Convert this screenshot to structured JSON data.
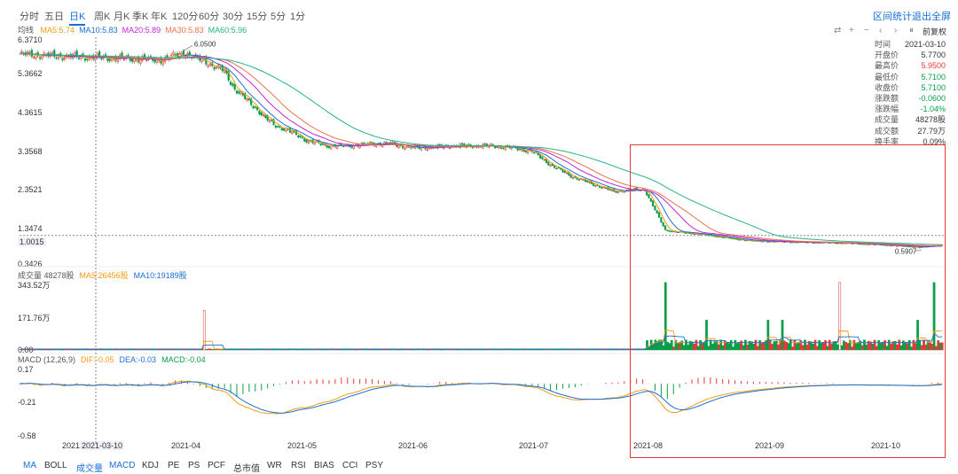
{
  "tabs": {
    "periods": [
      {
        "label": "分时",
        "active": false
      },
      {
        "label": "五日",
        "active": false
      },
      {
        "label": "日K",
        "active": true
      },
      {
        "label": "周K",
        "active": false
      },
      {
        "label": "月K",
        "active": false
      },
      {
        "label": "季K",
        "active": false
      },
      {
        "label": "年K",
        "active": false
      },
      {
        "label": "120分",
        "active": false
      },
      {
        "label": "60分",
        "active": false
      },
      {
        "label": "30分",
        "active": false
      },
      {
        "label": "15分",
        "active": false
      },
      {
        "label": "5分",
        "active": false
      },
      {
        "label": "1分",
        "active": false
      }
    ],
    "right_links": [
      "区间统计",
      "退出全屏"
    ]
  },
  "ma_legend": {
    "title": "均线",
    "items": [
      {
        "label": "MA5:5.74",
        "color": "#f39c12"
      },
      {
        "label": "MA10:5.83",
        "color": "#1a6fd6"
      },
      {
        "label": "MA20:5.89",
        "color": "#c026d3"
      },
      {
        "label": "MA30:5.83",
        "color": "#e8734a"
      },
      {
        "label": "MA60:5.96",
        "color": "#26b38a"
      }
    ]
  },
  "toolbar": {
    "icons": [
      "⇄",
      "+",
      "−",
      "‹",
      "›",
      "⏸"
    ],
    "adjust_label": "前复权"
  },
  "info_panel": [
    {
      "k": "时间",
      "v": "2021-03-10",
      "color": "#333"
    },
    {
      "k": "开盘价",
      "v": "5.7700",
      "color": "#333"
    },
    {
      "k": "最高价",
      "v": "5.9500",
      "color": "#e53935"
    },
    {
      "k": "最低价",
      "v": "5.7100",
      "color": "#0a9d48"
    },
    {
      "k": "收盘价",
      "v": "5.7100",
      "color": "#0a9d48"
    },
    {
      "k": "涨跌额",
      "v": "-0.0600",
      "color": "#0a9d48"
    },
    {
      "k": "涨跌幅",
      "v": "-1.04%",
      "color": "#0a9d48"
    },
    {
      "k": "成交量",
      "v": "48278股",
      "color": "#333"
    },
    {
      "k": "成交额",
      "v": "27.79万",
      "color": "#333"
    },
    {
      "k": "换手率",
      "v": "0.09%",
      "color": "#333"
    }
  ],
  "price_axis": {
    "labels": [
      "6.3710",
      "5.3662",
      "4.3615",
      "3.3568",
      "2.3521",
      "1.3474",
      "0.3426"
    ],
    "crosshair_label": "1.0015"
  },
  "price_marks": {
    "high_label": "6.0500",
    "low_label": "0.5907"
  },
  "volume_panel": {
    "legend": [
      {
        "label": "成交量 48278股",
        "color": "#555"
      },
      {
        "label": "MA5:26456股",
        "color": "#f39c12"
      },
      {
        "label": "MA10:19189股",
        "color": "#1a6fd6"
      }
    ],
    "axis_labels": [
      "343.52万",
      "171.76万",
      "0.00"
    ]
  },
  "macd_panel": {
    "legend": [
      {
        "label": "MACD (12,26,9)",
        "color": "#555"
      },
      {
        "label": "DIF:-0.05",
        "color": "#f39c12"
      },
      {
        "label": "DEA:-0.03",
        "color": "#1a6fd6"
      },
      {
        "label": "MACD:-0.04",
        "color": "#0a9d48"
      }
    ],
    "axis_labels": [
      "0.17",
      "-0.21",
      "-0.58"
    ]
  },
  "x_axis": {
    "labels": [
      "2021",
      "2021-03-10",
      "2021-04",
      "2021-05",
      "2021-06",
      "2021-07",
      "2021-08",
      "2021-09",
      "2021-10"
    ]
  },
  "indicator_tabs": [
    {
      "label": "MA",
      "active": true
    },
    {
      "label": "BOLL",
      "active": false
    },
    {
      "label": "成交量",
      "active": true
    },
    {
      "label": "MACD",
      "active": true
    },
    {
      "label": "KDJ",
      "active": false
    },
    {
      "label": "PE",
      "active": false
    },
    {
      "label": "PS",
      "active": false
    },
    {
      "label": "PCF",
      "active": false
    },
    {
      "label": "总市值",
      "active": false
    },
    {
      "label": "WR",
      "active": false
    },
    {
      "label": "RSI",
      "active": false
    },
    {
      "label": "BIAS",
      "active": false
    },
    {
      "label": "CCI",
      "active": false
    },
    {
      "label": "PSY",
      "active": false
    }
  ],
  "chart_data": {
    "type": "candlestick",
    "price_range": [
      0.3426,
      6.371
    ],
    "volume_range": [
      0,
      3435200
    ],
    "macd_range": [
      -0.58,
      0.17
    ],
    "up_color": "#e53935",
    "down_color": "#0a9d48",
    "ma_colors": {
      "MA5": "#f39c12",
      "MA10": "#1a6fd6",
      "MA20": "#c026d3",
      "MA30": "#e8734a",
      "MA60": "#26b38a"
    },
    "close_path": [
      [
        0,
        5.95
      ],
      [
        10,
        5.93
      ],
      [
        20,
        5.9
      ],
      [
        30,
        5.88
      ],
      [
        40,
        5.86
      ],
      [
        50,
        5.84
      ],
      [
        60,
        5.82
      ],
      [
        70,
        5.8
      ],
      [
        75,
        5.9
      ],
      [
        80,
        6.0
      ],
      [
        85,
        5.85
      ],
      [
        90,
        5.8
      ],
      [
        95,
        5.6
      ],
      [
        100,
        5.5
      ],
      [
        105,
        5.0
      ],
      [
        110,
        4.75
      ],
      [
        115,
        4.5
      ],
      [
        120,
        4.2
      ],
      [
        125,
        4.0
      ],
      [
        130,
        3.9
      ],
      [
        135,
        3.75
      ],
      [
        140,
        3.6
      ],
      [
        150,
        3.45
      ],
      [
        160,
        3.45
      ],
      [
        170,
        3.5
      ],
      [
        180,
        3.52
      ],
      [
        190,
        3.4
      ],
      [
        200,
        3.4
      ],
      [
        210,
        3.45
      ],
      [
        220,
        3.45
      ],
      [
        230,
        3.45
      ],
      [
        240,
        3.4
      ],
      [
        250,
        3.3
      ],
      [
        255,
        3.1
      ],
      [
        260,
        2.9
      ],
      [
        265,
        2.75
      ],
      [
        270,
        2.6
      ],
      [
        280,
        2.4
      ],
      [
        290,
        2.2
      ],
      [
        300,
        2.25
      ],
      [
        305,
        2.25
      ],
      [
        310,
        1.7
      ],
      [
        315,
        1.15
      ],
      [
        320,
        1.1
      ],
      [
        330,
        1.05
      ],
      [
        340,
        0.98
      ],
      [
        350,
        0.9
      ],
      [
        360,
        0.85
      ],
      [
        380,
        0.82
      ],
      [
        400,
        0.8
      ],
      [
        420,
        0.75
      ],
      [
        440,
        0.68
      ],
      [
        445,
        0.72
      ],
      [
        450,
        0.75
      ]
    ],
    "crosshair": {
      "date": "2021-03-10",
      "price": 1.0015
    }
  }
}
